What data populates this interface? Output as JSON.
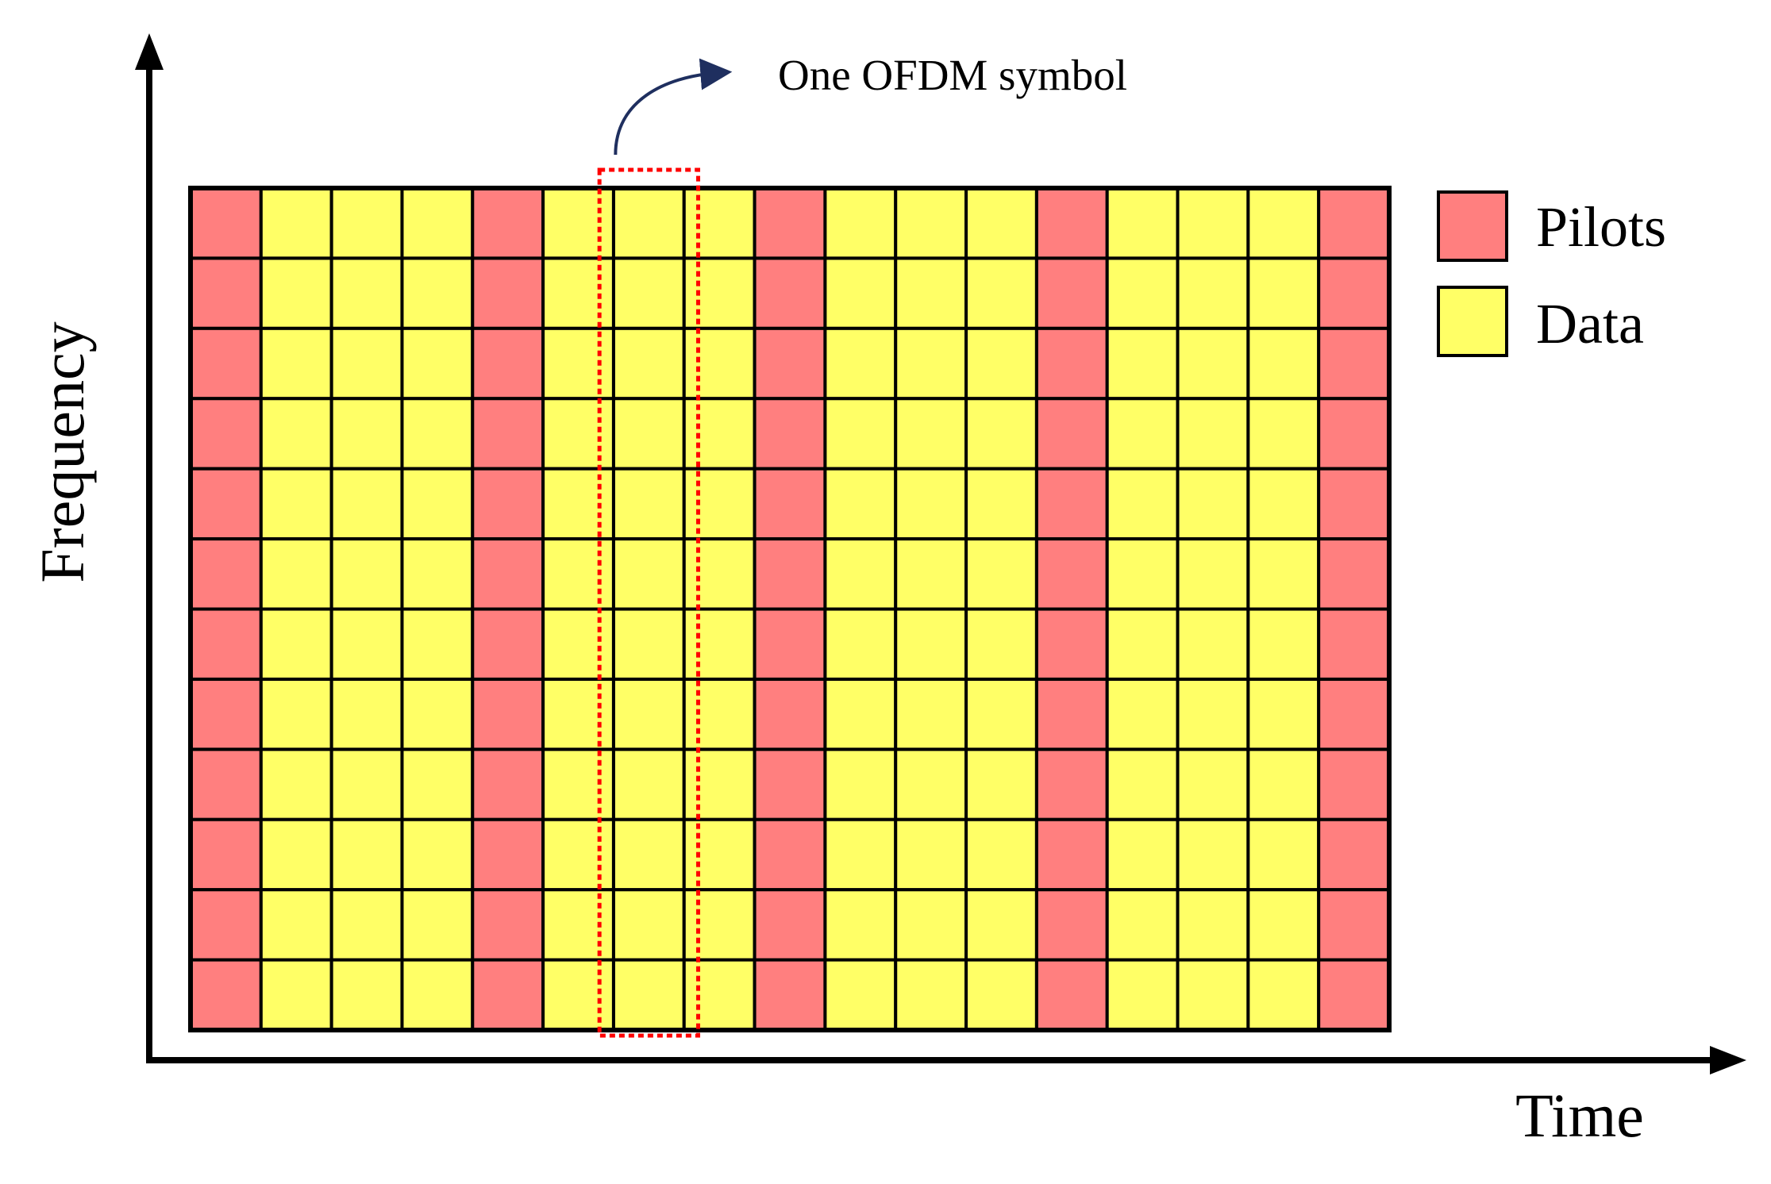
{
  "diagram": {
    "title": "",
    "annotation": "One OFDM symbol",
    "x_axis_label": "Time",
    "y_axis_label": "Frequency",
    "legend": [
      {
        "key": "pilot",
        "label": "Pilots",
        "color": "#FF7F7F"
      },
      {
        "key": "data",
        "label": "Data",
        "color": "#FFFF66"
      }
    ],
    "grid": {
      "rows": 12,
      "columns": 17,
      "pilot_columns": [
        1,
        5,
        9,
        13,
        17
      ],
      "highlighted_columns": [
        7
      ],
      "pilot_color": "#FF7F7F",
      "data_color": "#FFFF66",
      "line_color": "#000000",
      "highlight_color": "#FF0000",
      "annotation_arrow_color": "#1F2F5F"
    }
  }
}
